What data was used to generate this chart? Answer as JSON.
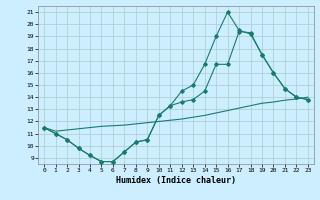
{
  "title": "",
  "xlabel": "Humidex (Indice chaleur)",
  "background_color": "#cceeff",
  "grid_color": "#aacccc",
  "line_color": "#1a7a6e",
  "xlim": [
    -0.5,
    23.5
  ],
  "ylim": [
    8.5,
    21.5
  ],
  "xticks": [
    0,
    1,
    2,
    3,
    4,
    5,
    6,
    7,
    8,
    9,
    10,
    11,
    12,
    13,
    14,
    15,
    16,
    17,
    18,
    19,
    20,
    21,
    22,
    23
  ],
  "yticks": [
    9,
    10,
    11,
    12,
    13,
    14,
    15,
    16,
    17,
    18,
    19,
    20,
    21
  ],
  "line1_y": [
    11.5,
    11.0,
    10.5,
    9.8,
    9.2,
    8.7,
    8.7,
    9.5,
    10.3,
    10.5,
    12.5,
    13.3,
    13.6,
    13.8,
    14.5,
    16.7,
    16.7,
    19.4,
    19.3,
    17.5,
    16.0,
    14.7,
    14.0,
    13.8
  ],
  "line2_y": [
    11.5,
    11.0,
    10.5,
    9.8,
    9.2,
    8.7,
    8.7,
    9.5,
    10.3,
    10.5,
    12.5,
    13.3,
    14.5,
    15.0,
    16.7,
    19.0,
    21.0,
    19.5,
    19.2,
    17.5,
    16.0,
    14.7,
    14.0,
    13.8
  ],
  "line3_y": [
    11.5,
    11.2,
    11.3,
    11.4,
    11.5,
    11.6,
    11.65,
    11.7,
    11.8,
    11.9,
    12.0,
    12.1,
    12.2,
    12.35,
    12.5,
    12.7,
    12.9,
    13.1,
    13.3,
    13.5,
    13.6,
    13.75,
    13.85,
    14.0
  ]
}
